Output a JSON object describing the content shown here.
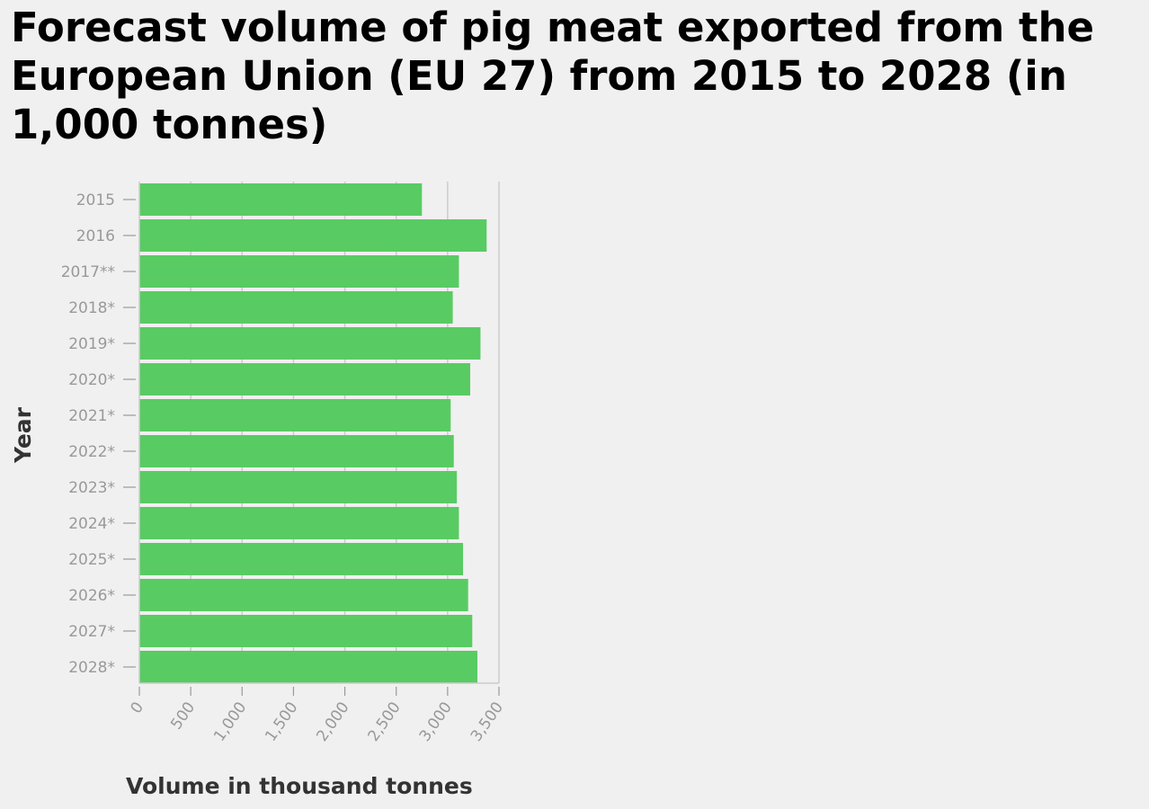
{
  "chart_data": {
    "type": "bar",
    "orientation": "horizontal",
    "title": "Forecast volume of pig meat exported from the European Union (EU 27) from 2015 to 2028 (in 1,000 tonnes)",
    "xlabel": "Volume in thousand tonnes",
    "ylabel": "Year",
    "categories": [
      "2015",
      "2016",
      "2017**",
      "2018*",
      "2019*",
      "2020*",
      "2021*",
      "2022*",
      "2023*",
      "2024*",
      "2025*",
      "2026*",
      "2027*",
      "2028*"
    ],
    "values": [
      2750,
      3380,
      3110,
      3050,
      3320,
      3220,
      3030,
      3060,
      3090,
      3110,
      3150,
      3200,
      3240,
      3290
    ],
    "xlim": [
      0,
      3500
    ],
    "xticks": [
      "0",
      "500",
      "1,000",
      "1,500",
      "2,000",
      "2,500",
      "3,000",
      "3,500"
    ],
    "grid": "vertical",
    "bar_color": "#59cb63"
  }
}
